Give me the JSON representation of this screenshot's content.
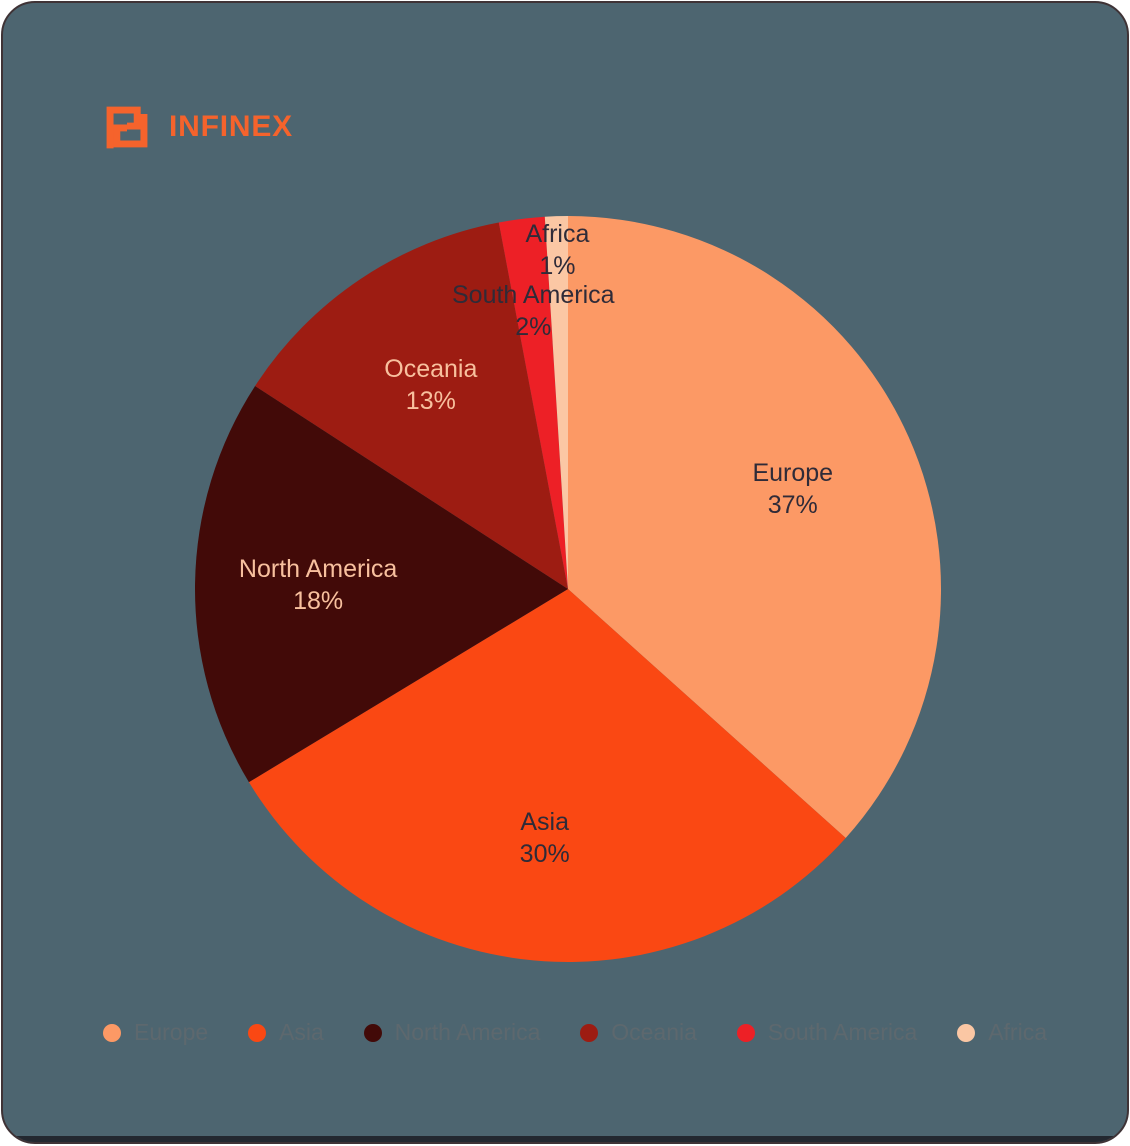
{
  "brand": {
    "name": "INFINEX",
    "logo_color": "#F5632C"
  },
  "chart_data": {
    "type": "pie",
    "title": "",
    "categories": [
      "Europe",
      "Asia",
      "North America",
      "Oceania",
      "South America",
      "Africa"
    ],
    "values": [
      37,
      30,
      18,
      13,
      2,
      1
    ],
    "unit": "%",
    "colors": [
      "#FC9965",
      "#FA4813",
      "#420A08",
      "#9D1C12",
      "#ED2026",
      "#FBC7A4"
    ],
    "label_colors": [
      "#2F2B38",
      "#2F2B38",
      "#F8C09E",
      "#F8C09E",
      "#2F2B38",
      "#2F2B38"
    ],
    "label_radius_fraction": [
      0.66,
      0.67,
      0.67,
      0.66,
      0.75,
      0.91
    ],
    "start_angle_deg": 0,
    "direction": "clockwise",
    "grid": false,
    "legend_position": "bottom",
    "legend": [
      "Europe",
      "Asia",
      "North America",
      "Oceania",
      "South America",
      "Africa"
    ]
  },
  "theme": {
    "page_bg": "#FFFFFF",
    "card_bg": "#4D6570",
    "card_border": "#3F3336",
    "legend_text_color": "#5D686E",
    "bottom_bar_color": "#232830"
  }
}
